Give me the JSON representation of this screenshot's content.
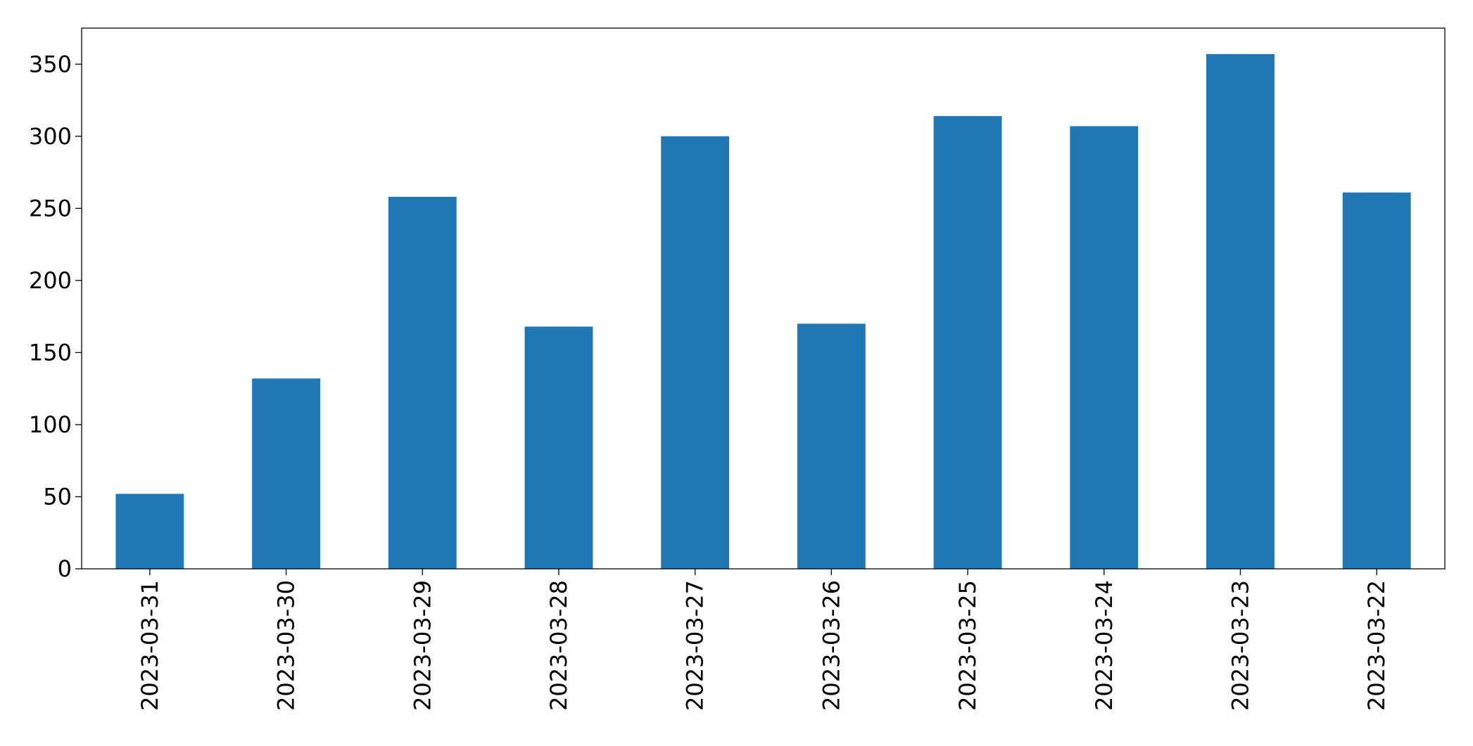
{
  "chart_data": {
    "type": "bar",
    "categories": [
      "2023-03-31",
      "2023-03-30",
      "2023-03-29",
      "2023-03-28",
      "2023-03-27",
      "2023-03-26",
      "2023-03-25",
      "2023-03-24",
      "2023-03-23",
      "2023-03-22"
    ],
    "values": [
      52,
      132,
      258,
      168,
      300,
      170,
      314,
      307,
      357,
      261
    ],
    "color": "#1f77b4",
    "ylim": [
      0,
      375
    ],
    "yticks": [
      0,
      50,
      100,
      150,
      200,
      250,
      300,
      350
    ],
    "grid": false
  }
}
